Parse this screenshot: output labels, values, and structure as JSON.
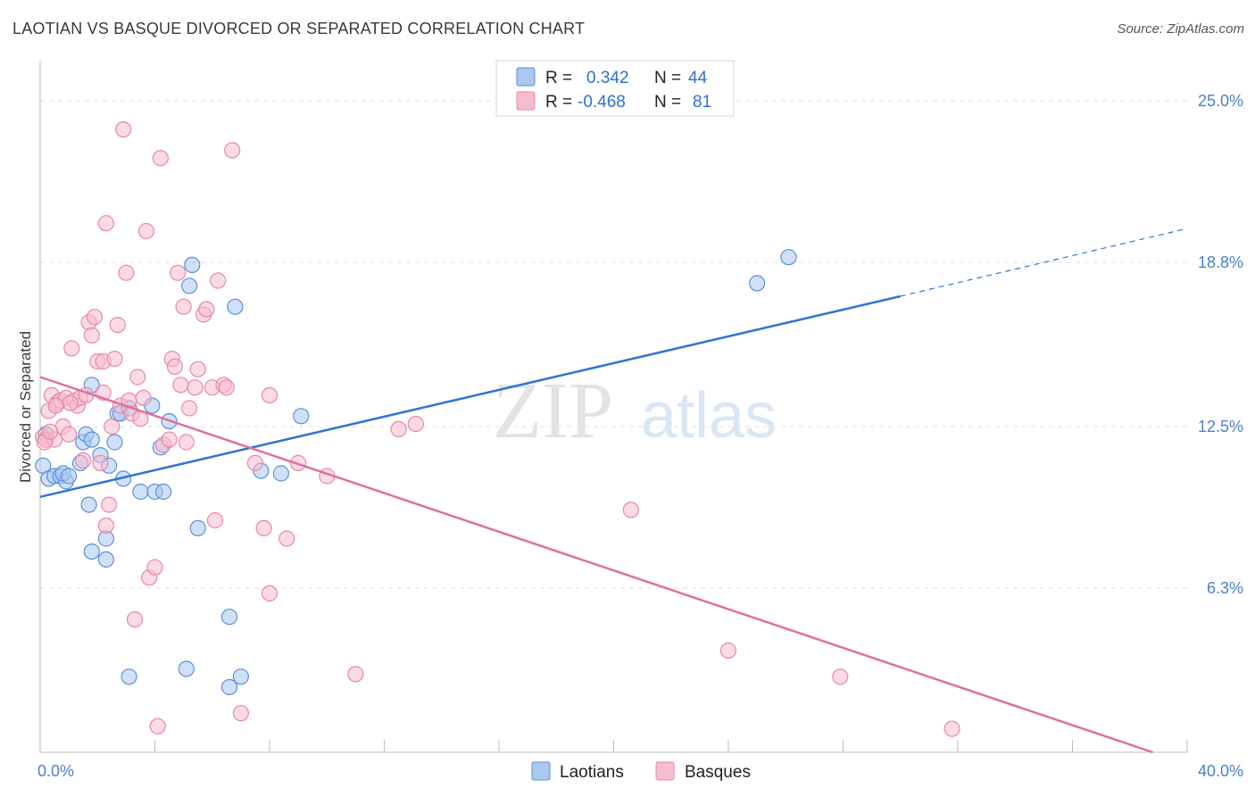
{
  "title": "LAOTIAN VS BASQUE DIVORCED OR SEPARATED CORRELATION CHART",
  "source": "Source: ZipAtlas.com",
  "watermark": {
    "zip": "ZIP",
    "atlas": "atlas"
  },
  "colors": {
    "laotian_fill": "#aac8f0",
    "laotian_stroke": "#5a8fdc",
    "laotian_line": "#2f75d6",
    "basque_fill": "#f6bcd0",
    "basque_stroke": "#e888a8",
    "basque_line": "#e0709a",
    "tick_label": "#4a7fd0",
    "grid": "#dcdcdc"
  },
  "legend": {
    "rows": [
      {
        "r_label": "R =",
        "r_value": "0.342",
        "n_label": "N =",
        "n_value": "44"
      },
      {
        "r_label": "R =",
        "r_value": "-0.468",
        "n_label": "N =",
        "n_value": "81"
      }
    ]
  },
  "bottom_legend": [
    "Laotians",
    "Basques"
  ],
  "chart_data": {
    "type": "scatter",
    "xlabel": "",
    "ylabel": "Divorced or Separated",
    "xlim": [
      0,
      40
    ],
    "ylim": [
      0,
      26.3
    ],
    "x_tick_labels": [
      {
        "value": 0,
        "label": "0.0%"
      },
      {
        "value": 40,
        "label": "40.0%"
      }
    ],
    "y_tick_labels": [
      {
        "value": 6.3,
        "label": "6.3%"
      },
      {
        "value": 12.5,
        "label": "12.5%"
      },
      {
        "value": 18.8,
        "label": "18.8%"
      },
      {
        "value": 25.0,
        "label": "25.0%"
      }
    ],
    "grid": true,
    "legend_position": "top-center",
    "series": [
      {
        "name": "Laotians",
        "r": 0.342,
        "n": 44,
        "trend": {
          "x0": 0,
          "y0": 9.8,
          "x1": 30,
          "y1": 17.5,
          "dash_to_x": 40,
          "dash_to_y": 20.1
        },
        "points": [
          [
            0.1,
            11.0
          ],
          [
            0.3,
            10.5
          ],
          [
            0.5,
            10.6
          ],
          [
            0.7,
            10.6
          ],
          [
            0.9,
            10.4
          ],
          [
            0.8,
            10.7
          ],
          [
            1.0,
            10.6
          ],
          [
            1.4,
            11.1
          ],
          [
            1.5,
            11.9
          ],
          [
            1.6,
            12.2
          ],
          [
            1.7,
            9.5
          ],
          [
            1.8,
            7.7
          ],
          [
            1.8,
            14.1
          ],
          [
            1.8,
            12.0
          ],
          [
            2.1,
            11.4
          ],
          [
            2.3,
            8.2
          ],
          [
            2.3,
            7.4
          ],
          [
            2.4,
            11.0
          ],
          [
            2.6,
            11.9
          ],
          [
            2.7,
            13.0
          ],
          [
            2.8,
            13.0
          ],
          [
            2.9,
            10.5
          ],
          [
            3.1,
            13.2
          ],
          [
            3.1,
            2.9
          ],
          [
            3.5,
            10.0
          ],
          [
            3.9,
            13.3
          ],
          [
            4.0,
            10.0
          ],
          [
            4.2,
            11.7
          ],
          [
            4.3,
            10.0
          ],
          [
            4.5,
            12.7
          ],
          [
            5.1,
            3.2
          ],
          [
            5.2,
            17.9
          ],
          [
            5.3,
            18.7
          ],
          [
            5.5,
            8.6
          ],
          [
            6.6,
            5.2
          ],
          [
            6.6,
            2.5
          ],
          [
            6.8,
            17.1
          ],
          [
            7.0,
            2.9
          ],
          [
            7.7,
            10.8
          ],
          [
            8.4,
            10.7
          ],
          [
            9.1,
            12.9
          ],
          [
            25.0,
            18.0
          ],
          [
            26.1,
            19.0
          ],
          [
            0.2,
            12.2
          ]
        ]
      },
      {
        "name": "Basques",
        "r": -0.468,
        "n": 81,
        "trend": {
          "x0": 0,
          "y0": 14.4,
          "x1": 38.8,
          "y1": 0.0
        },
        "points": [
          [
            0.1,
            12.1
          ],
          [
            0.2,
            12.0
          ],
          [
            0.3,
            13.1
          ],
          [
            0.4,
            13.7
          ],
          [
            0.5,
            12.0
          ],
          [
            0.6,
            13.4
          ],
          [
            0.7,
            13.5
          ],
          [
            0.8,
            12.5
          ],
          [
            0.9,
            13.6
          ],
          [
            1.0,
            12.2
          ],
          [
            1.1,
            15.5
          ],
          [
            1.2,
            13.5
          ],
          [
            1.3,
            13.3
          ],
          [
            1.4,
            13.6
          ],
          [
            1.5,
            11.2
          ],
          [
            1.6,
            13.7
          ],
          [
            1.7,
            16.5
          ],
          [
            1.8,
            16.0
          ],
          [
            1.9,
            16.7
          ],
          [
            2.0,
            15.0
          ],
          [
            2.1,
            11.1
          ],
          [
            2.2,
            15.0
          ],
          [
            2.2,
            13.8
          ],
          [
            2.3,
            20.3
          ],
          [
            2.3,
            8.7
          ],
          [
            2.4,
            9.5
          ],
          [
            2.5,
            12.5
          ],
          [
            2.6,
            15.1
          ],
          [
            2.7,
            16.4
          ],
          [
            2.8,
            13.3
          ],
          [
            2.9,
            23.9
          ],
          [
            3.0,
            18.4
          ],
          [
            3.1,
            13.5
          ],
          [
            3.2,
            13.0
          ],
          [
            3.3,
            5.1
          ],
          [
            3.4,
            14.4
          ],
          [
            3.5,
            12.8
          ],
          [
            3.6,
            13.6
          ],
          [
            3.7,
            20.0
          ],
          [
            3.8,
            6.7
          ],
          [
            4.0,
            7.1
          ],
          [
            4.1,
            1.0
          ],
          [
            4.2,
            22.8
          ],
          [
            4.3,
            11.8
          ],
          [
            4.5,
            12.0
          ],
          [
            4.6,
            15.1
          ],
          [
            4.7,
            14.8
          ],
          [
            4.8,
            18.4
          ],
          [
            4.9,
            14.1
          ],
          [
            5.0,
            17.1
          ],
          [
            5.1,
            11.9
          ],
          [
            5.2,
            13.2
          ],
          [
            5.4,
            14.0
          ],
          [
            5.5,
            14.7
          ],
          [
            5.7,
            16.8
          ],
          [
            5.8,
            17.0
          ],
          [
            6.0,
            14.0
          ],
          [
            6.1,
            8.9
          ],
          [
            6.2,
            18.1
          ],
          [
            6.4,
            14.1
          ],
          [
            6.5,
            14.0
          ],
          [
            6.7,
            23.1
          ],
          [
            7.0,
            1.5
          ],
          [
            7.5,
            11.1
          ],
          [
            7.8,
            8.6
          ],
          [
            8.0,
            13.7
          ],
          [
            8.6,
            8.2
          ],
          [
            8.0,
            6.1
          ],
          [
            9.0,
            11.1
          ],
          [
            10.0,
            10.6
          ],
          [
            11.0,
            3.0
          ],
          [
            12.5,
            12.4
          ],
          [
            13.1,
            12.6
          ],
          [
            20.6,
            9.3
          ],
          [
            24.0,
            3.9
          ],
          [
            27.9,
            2.9
          ],
          [
            31.8,
            0.9
          ],
          [
            0.15,
            11.9
          ],
          [
            0.35,
            12.3
          ],
          [
            1.05,
            13.4
          ],
          [
            0.55,
            13.3
          ]
        ]
      }
    ]
  }
}
